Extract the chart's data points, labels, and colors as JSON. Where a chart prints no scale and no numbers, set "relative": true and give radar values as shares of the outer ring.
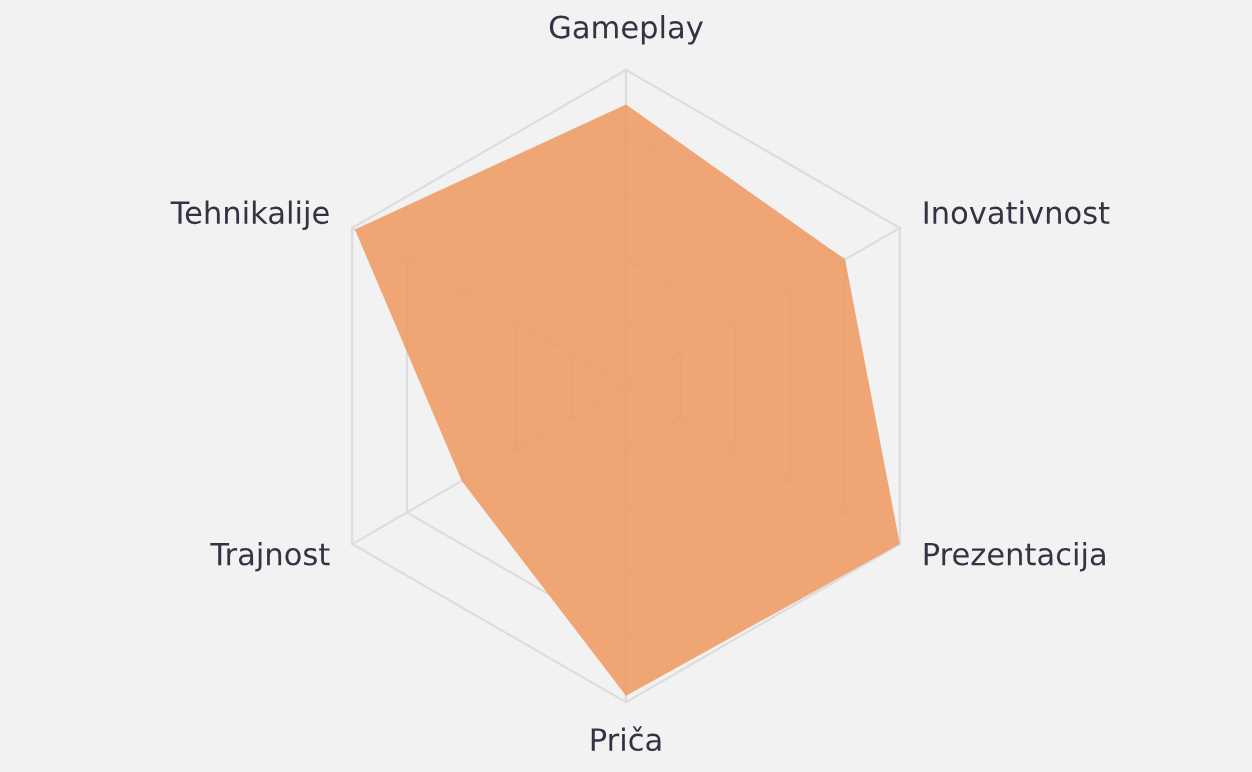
{
  "chart_data": {
    "type": "radar",
    "relative": true,
    "grid": true,
    "legend": false,
    "categories": [
      "Gameplay",
      "Inovativnost",
      "Prezentacija",
      "Priča",
      "Trajnost",
      "Tehnikalije"
    ],
    "series": [
      {
        "color": "#ee9a62",
        "values": [
          0.89,
          0.8,
          1.0,
          0.98,
          0.6,
          0.99
        ]
      }
    ]
  }
}
